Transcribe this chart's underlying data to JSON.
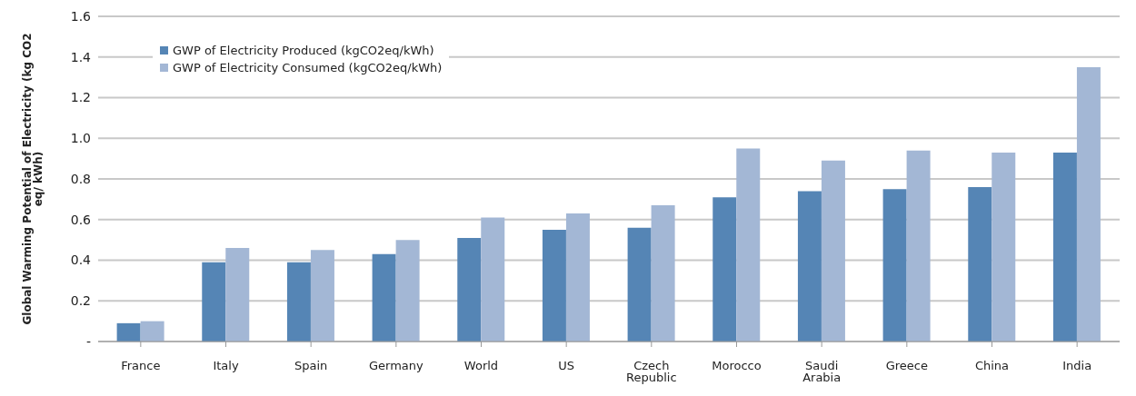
{
  "chart_data": {
    "type": "bar",
    "ylabel": "Global Warming Potential of Electricity (kg CO2 eq/ kWh)",
    "categories": [
      "France",
      "Italy",
      "Spain",
      "Germany",
      "World",
      "US",
      "Czech Republic",
      "Morocco",
      "Saudi Arabia",
      "Greece",
      "China",
      "India"
    ],
    "series": [
      {
        "name": "GWP of Electricity Produced (kgCO2eq/kWh)",
        "color": "#5585b5",
        "values": [
          0.09,
          0.39,
          0.39,
          0.43,
          0.51,
          0.55,
          0.56,
          0.71,
          0.74,
          0.75,
          0.76,
          0.93
        ]
      },
      {
        "name": "GWP of Electricity Consumed (kgCO2eq/kWh)",
        "color": "#a3b7d5",
        "values": [
          0.1,
          0.46,
          0.45,
          0.5,
          0.61,
          0.63,
          0.67,
          0.95,
          0.89,
          0.94,
          0.93,
          1.35
        ]
      }
    ],
    "ylim": [
      0,
      1.6
    ],
    "yticks": [
      {
        "value": 0,
        "label": "-"
      },
      0.2,
      0.4,
      0.6,
      0.8,
      {
        "value": 1,
        "label": "1.0"
      },
      1.2,
      1.4,
      1.6
    ],
    "grid": "y",
    "legend": "top left"
  }
}
